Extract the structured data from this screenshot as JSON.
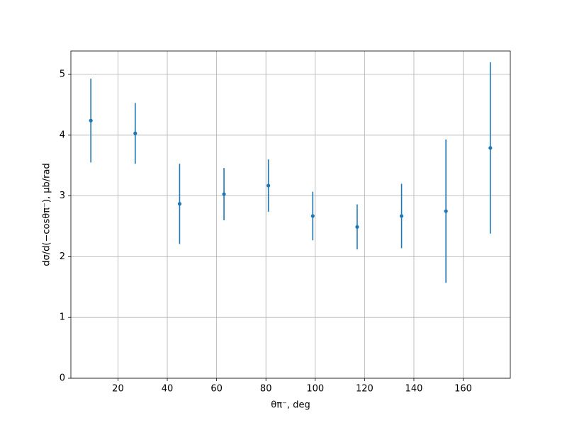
{
  "chart_data": {
    "type": "errorbar",
    "x_label": "θπ⁻, deg",
    "y_label": "dσ/d(−cosθπ⁻), μb/rad",
    "x": [
      9,
      27,
      45,
      63,
      81,
      99,
      117,
      135,
      153,
      171
    ],
    "series": [
      {
        "color": "#1f77b4",
        "values": [
          4.24,
          4.03,
          2.87,
          3.03,
          3.17,
          2.67,
          2.49,
          2.67,
          2.75,
          3.79
        ],
        "errors": [
          0.69,
          0.5,
          0.66,
          0.43,
          0.43,
          0.4,
          0.37,
          0.53,
          1.18,
          1.41
        ]
      }
    ],
    "xlim": [
      0.9,
      179.1
    ],
    "ylim": [
      0,
      5.385
    ],
    "xticks": [
      20,
      40,
      60,
      80,
      100,
      120,
      140,
      160
    ],
    "yticks": [
      0,
      1,
      2,
      3,
      4,
      5
    ],
    "grid": true
  }
}
